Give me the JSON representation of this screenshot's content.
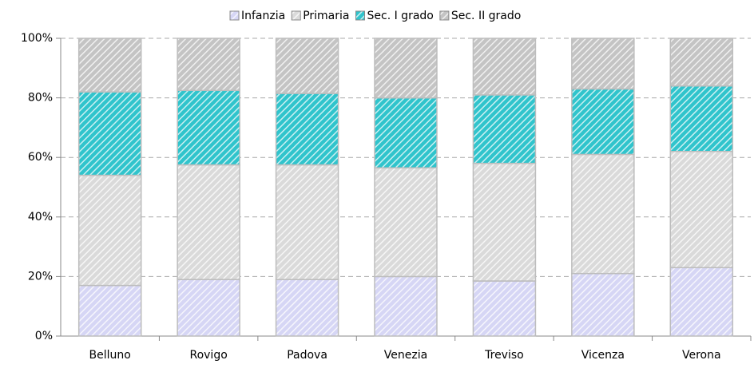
{
  "chart_data": {
    "type": "stacked-bar-100",
    "categories": [
      "Belluno",
      "Rovigo",
      "Padova",
      "Venezia",
      "Treviso",
      "Vicenza",
      "Verona"
    ],
    "series": [
      {
        "name": "Infanzia",
        "color": "#d6d6f5",
        "values": [
          17,
          19,
          19,
          20,
          18.5,
          21,
          23
        ]
      },
      {
        "name": "Primaria",
        "color": "#dadada",
        "values": [
          37,
          38.5,
          38.5,
          36.5,
          39.5,
          40,
          39
        ]
      },
      {
        "name": "Sec. I grado",
        "color": "#30c4cc",
        "values": [
          28,
          25,
          24,
          23.5,
          23,
          22,
          22
        ]
      },
      {
        "name": "Sec. II grado",
        "color": "#c4c4c4",
        "values": [
          18,
          17.5,
          18.5,
          20,
          19,
          17,
          16
        ]
      }
    ],
    "ylim": [
      0,
      100
    ],
    "yticks": [
      {
        "value": 0,
        "label": "0%"
      },
      {
        "value": 20,
        "label": "20%"
      },
      {
        "value": 40,
        "label": "40%"
      },
      {
        "value": 60,
        "label": "60%"
      },
      {
        "value": 80,
        "label": "80%"
      },
      {
        "value": 100,
        "label": "100%"
      }
    ],
    "grid": true
  }
}
